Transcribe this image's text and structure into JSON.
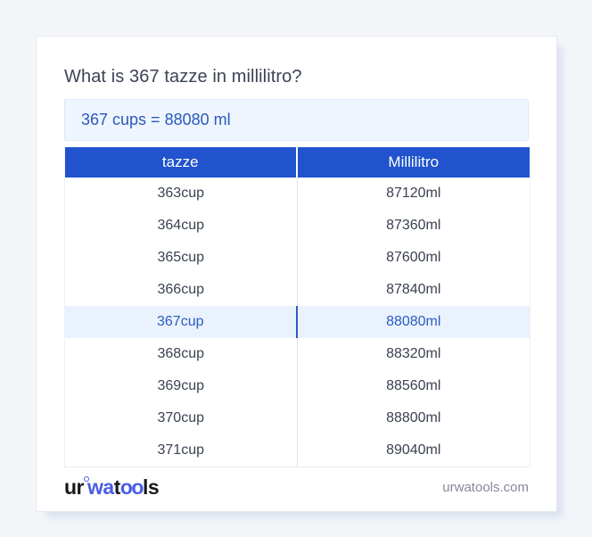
{
  "title": "What is 367 tazze in millilitro?",
  "answer": {
    "text": "367 cups = 88080 ml"
  },
  "table": {
    "headers": [
      "tazze",
      "Millilitro"
    ],
    "rows": [
      {
        "cup": "363cup",
        "ml": "87120ml",
        "highlight": false
      },
      {
        "cup": "364cup",
        "ml": "87360ml",
        "highlight": false
      },
      {
        "cup": "365cup",
        "ml": "87600ml",
        "highlight": false
      },
      {
        "cup": "366cup",
        "ml": "87840ml",
        "highlight": false
      },
      {
        "cup": "367cup",
        "ml": "88080ml",
        "highlight": true
      },
      {
        "cup": "368cup",
        "ml": "88320ml",
        "highlight": false
      },
      {
        "cup": "369cup",
        "ml": "88560ml",
        "highlight": false
      },
      {
        "cup": "370cup",
        "ml": "88800ml",
        "highlight": false
      },
      {
        "cup": "371cup",
        "ml": "89040ml",
        "highlight": false
      }
    ]
  },
  "footer": {
    "logo": {
      "part_ur": "ur",
      "part_wa": "wa",
      "part_t": "t",
      "part_oo": "oo",
      "part_ls": "ls"
    },
    "site": "urwatools.com"
  },
  "colors": {
    "page_background": "#f3f5f9",
    "card_background": "#ffffff",
    "header_blue": "#2053cd",
    "highlight_row_background": "#eaf2fd",
    "highlight_text": "#2b5cc0",
    "answer_box_background": "#eef5fd",
    "answer_text": "#2b59bd",
    "logo_blue": "#4a5de6",
    "title_text": "#3c4355"
  }
}
